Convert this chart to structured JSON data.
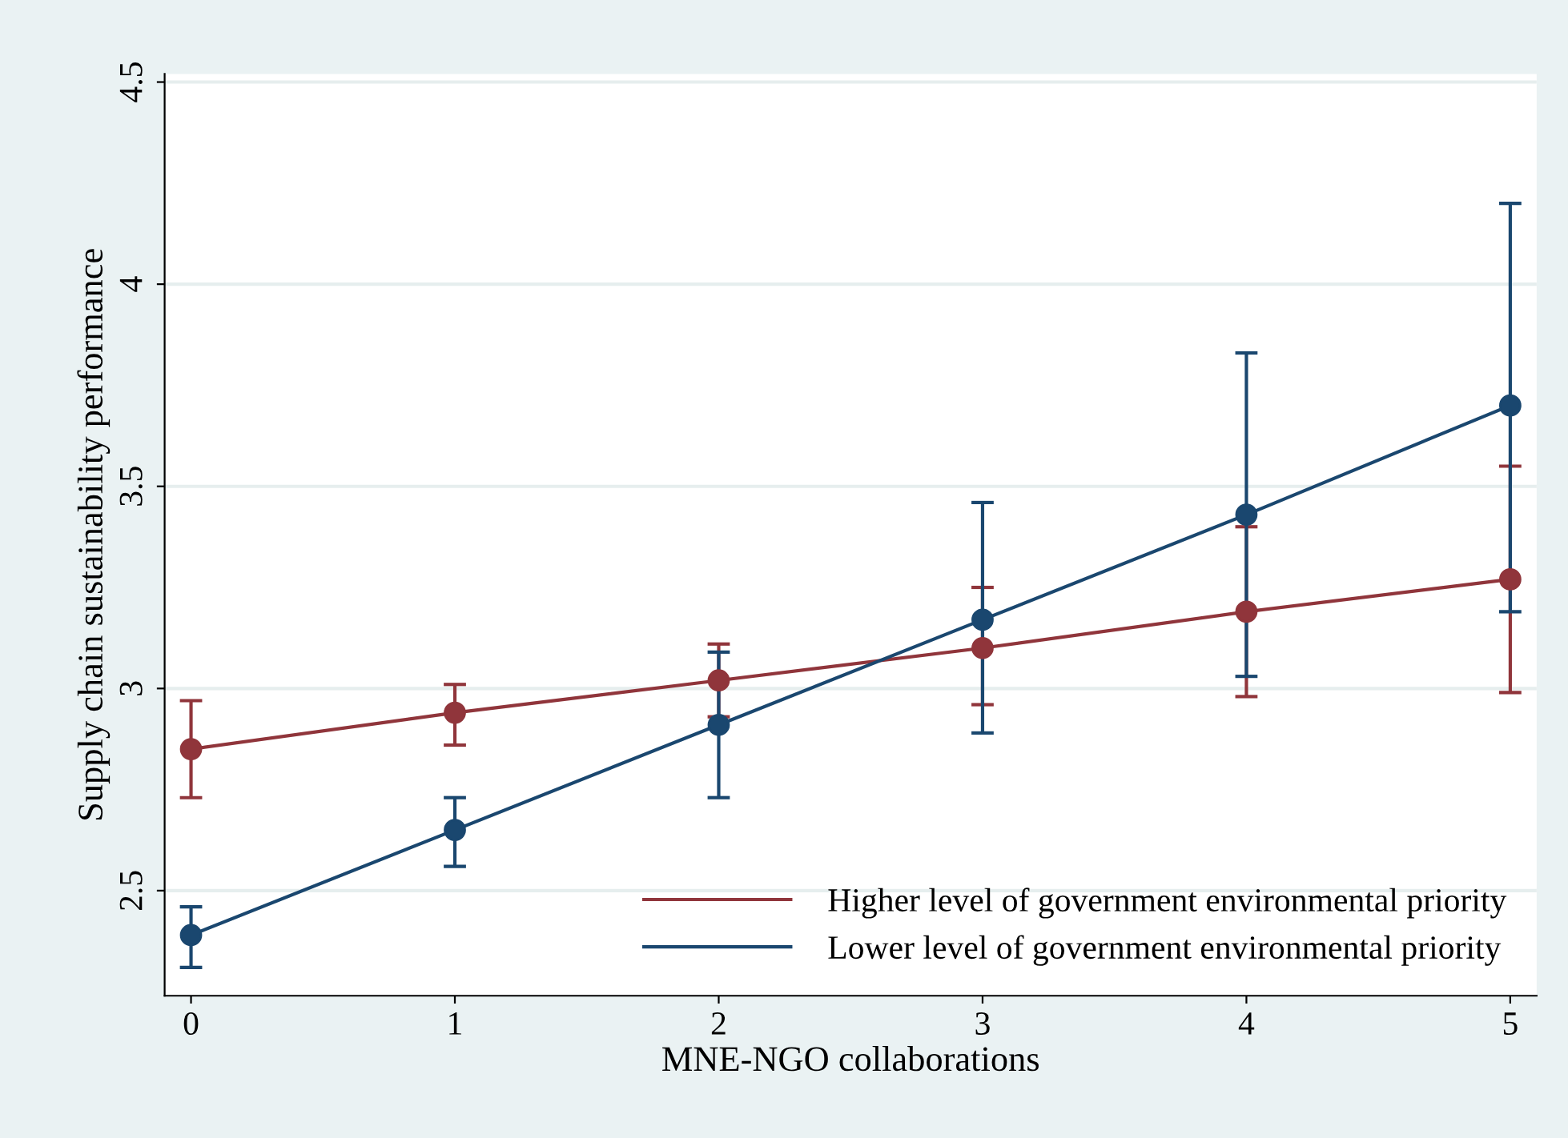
{
  "chart_data": {
    "type": "line",
    "xlabel": "MNE-NGO collaborations",
    "ylabel": "Supply chain sustainability performance",
    "x": [
      0,
      1,
      2,
      3,
      4,
      5
    ],
    "series": [
      {
        "name": "Higher level of government environmental priority",
        "color": "#90353b",
        "values": [
          2.85,
          2.94,
          3.02,
          3.1,
          3.19,
          3.27
        ],
        "errors": [
          [
            2.73,
            2.97
          ],
          [
            2.86,
            3.01
          ],
          [
            2.93,
            3.11
          ],
          [
            2.96,
            3.25
          ],
          [
            2.98,
            3.4
          ],
          [
            2.99,
            3.55
          ]
        ]
      },
      {
        "name": "Lower level of government environmental priority",
        "color": "#1a476f",
        "values": [
          2.39,
          2.65,
          2.91,
          3.17,
          3.43,
          3.7
        ],
        "errors": [
          [
            2.31,
            2.46
          ],
          [
            2.56,
            2.73
          ],
          [
            2.73,
            3.09
          ],
          [
            2.89,
            3.46
          ],
          [
            3.03,
            3.83
          ],
          [
            3.19,
            4.2
          ]
        ]
      }
    ],
    "xlim": [
      -0.1,
      5.1
    ],
    "ylim": [
      2.24,
      4.52
    ],
    "xticks": [
      0,
      1,
      2,
      3,
      4,
      5
    ],
    "yticks": [
      2.5,
      3,
      3.5,
      4,
      4.5
    ],
    "grid": "y",
    "legend": "bottom right",
    "marker": "circle",
    "line_style": "solid"
  }
}
